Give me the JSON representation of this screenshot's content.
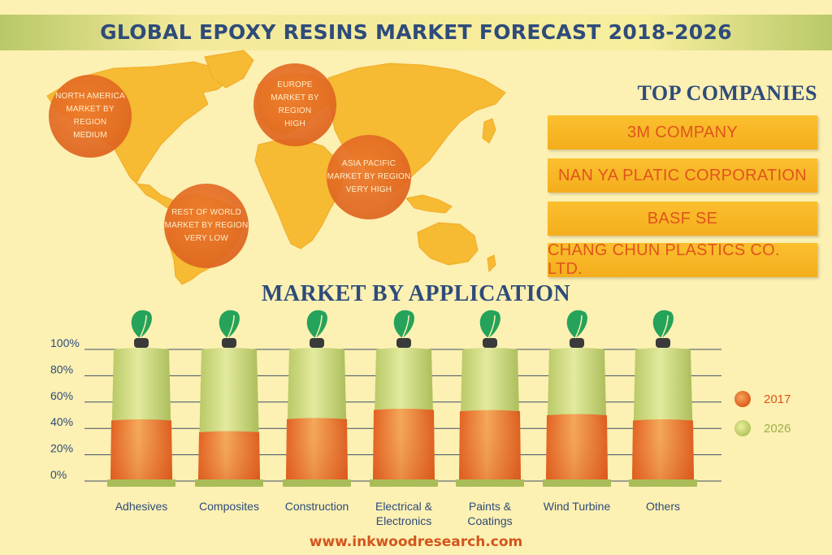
{
  "header": {
    "title": "GLOBAL EPOXY RESINS MARKET FORECAST 2018-2026"
  },
  "map": {
    "regions": [
      {
        "name": "NORTH AMERICA",
        "line2": "MARKET BY REGION",
        "level": "MEDIUM"
      },
      {
        "name": "EUROPE",
        "line2": "MARKET BY REGION",
        "level": "HIGH"
      },
      {
        "name": "ASIA PACIFIC",
        "line2": "MARKET BY REGION",
        "level": "VERY HIGH"
      },
      {
        "name": "REST OF WORLD",
        "line2": "MARKET BY REGION",
        "level": "VERY LOW"
      }
    ]
  },
  "top_companies": {
    "title": "TOP COMPANIES",
    "items": [
      "3M COMPANY",
      "NAN YA PLATIC CORPORATION",
      "BASF SE",
      "CHANG CHUN PLASTICS CO. LTD."
    ]
  },
  "chart_data": {
    "type": "bar",
    "title": "MARKET BY APPLICATION",
    "categories": [
      "Adhesives",
      "Composites",
      "Construction",
      "Electrical &\nElectronics",
      "Paints &\nCoatings",
      "Wind Turbine",
      "Others"
    ],
    "series": [
      {
        "name": "2017",
        "values": [
          46,
          37,
          47,
          54,
          53,
          50,
          46
        ]
      },
      {
        "name": "2026",
        "values": [
          100,
          100,
          100,
          100,
          100,
          100,
          100
        ]
      }
    ],
    "yticks": [
      "0%",
      "20%",
      "40%",
      "60%",
      "80%",
      "100%"
    ],
    "ylim": [
      0,
      100
    ],
    "grid": true,
    "legend_position": "right"
  },
  "colors": {
    "background": "#fcf0b2",
    "title_blue": "#2e4b7a",
    "accent_orange": "#e0541c",
    "map_yellow": "#f6b82d",
    "series_2017": "#e8742a",
    "series_2026": "#c8d67a",
    "leaf_green": "#25a35a"
  },
  "footer": {
    "url": "www.inkwoodresearch.com"
  }
}
